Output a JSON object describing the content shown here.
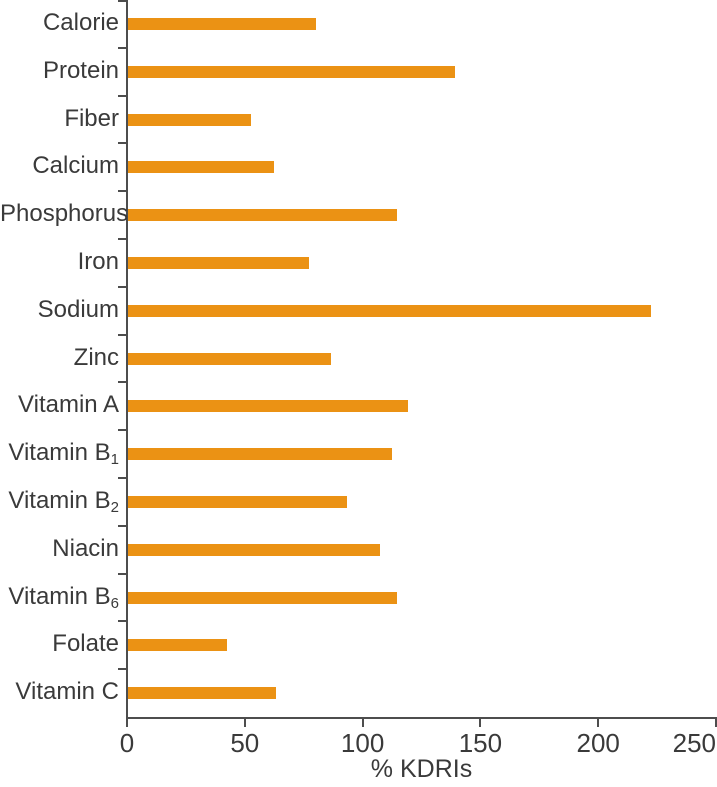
{
  "chart_data": {
    "type": "bar",
    "orientation": "horizontal",
    "categories": [
      "Calorie",
      "Protein",
      "Fiber",
      "Calcium",
      "Phosphorus",
      "Iron",
      "Sodium",
      "Zinc",
      "Vitamin A",
      "Vitamin B₁",
      "Vitamin B₂",
      "Niacin",
      "Vitamin B₆",
      "Folate",
      "Vitamin C"
    ],
    "values": [
      80,
      139,
      52,
      62,
      114,
      77,
      222,
      86,
      119,
      112,
      93,
      107,
      114,
      42,
      63
    ],
    "title": "",
    "xlabel": "% KDRIs",
    "ylabel": "",
    "xlim": [
      0,
      250
    ],
    "xticks": [
      0,
      50,
      100,
      150,
      200,
      250
    ],
    "grid": false,
    "legend": null,
    "bar_color": "#eb9214",
    "axis_color": "#4d4d4d",
    "text_color": "#3a3a3a"
  }
}
